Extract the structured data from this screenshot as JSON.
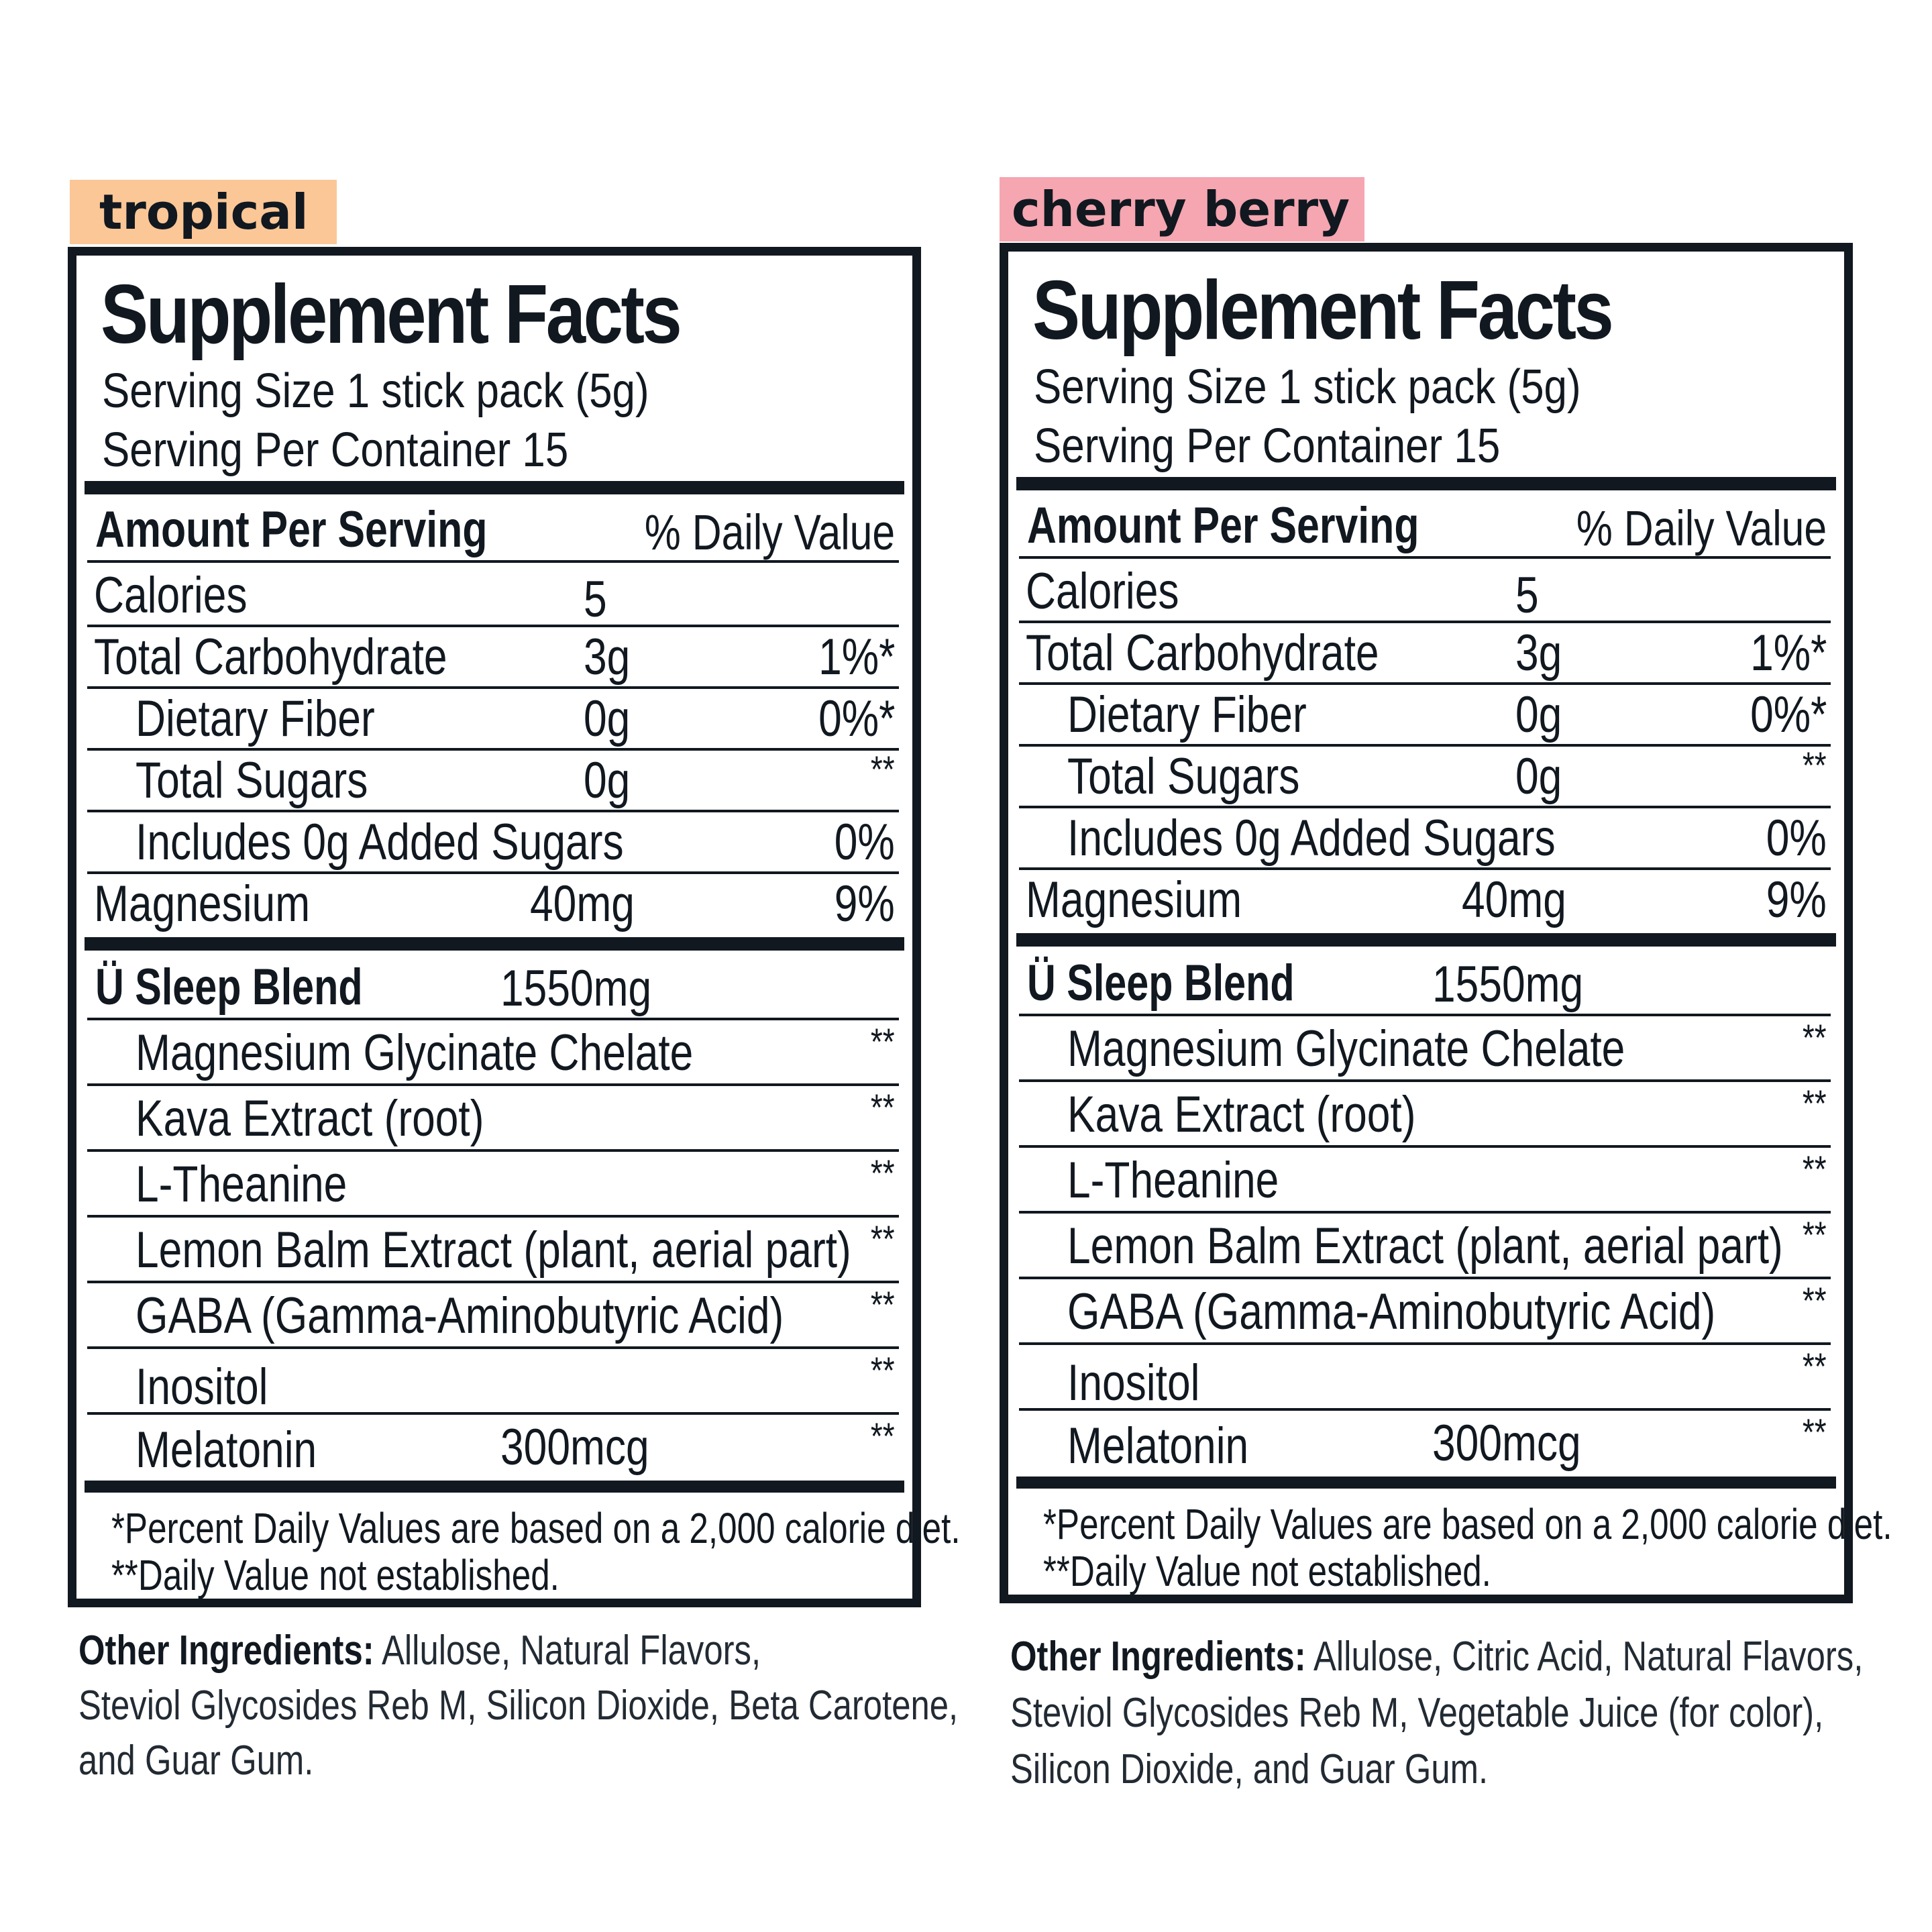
{
  "colors": {
    "tropical_tag": "#FBC797",
    "cherry_tag": "#F5A6B0",
    "ink": "#111820"
  },
  "panels": [
    {
      "flavor": "tropical",
      "title": "Supplement Facts",
      "serving_size": "Serving Size 1 stick pack (5g)",
      "servings_per_container": "Serving Per Container 15",
      "amount_per_serving": "Amount Per Serving",
      "daily_value_header": "% Daily Value",
      "nutrients": [
        {
          "name": "Calories",
          "amount": "5",
          "dv": ""
        },
        {
          "name": "Total Carbohydrate",
          "amount": "3g",
          "dv": "1%*"
        },
        {
          "name": "Dietary Fiber",
          "amount": "0g",
          "dv": "0%*"
        },
        {
          "name": "Total Sugars",
          "amount": "0g",
          "dv": "**"
        },
        {
          "name": "Includes 0g Added Sugars",
          "amount": "",
          "dv": "0%"
        },
        {
          "name": "Magnesium",
          "amount": "40mg",
          "dv": "9%"
        }
      ],
      "blend": {
        "name": "Ü Sleep Blend",
        "amount": "1550mg"
      },
      "blend_items": [
        {
          "name": "Magnesium Glycinate Chelate",
          "amount": "",
          "dv": "**"
        },
        {
          "name": "Kava Extract (root)",
          "amount": "",
          "dv": "**"
        },
        {
          "name": "L-Theanine",
          "amount": "",
          "dv": "**"
        },
        {
          "name": "Lemon Balm Extract (plant, aerial part)",
          "amount": "",
          "dv": "**"
        },
        {
          "name": "GABA (Gamma-Aminobutyric Acid)",
          "amount": "",
          "dv": "**"
        },
        {
          "name": "Inositol",
          "amount": "",
          "dv": "**"
        },
        {
          "name": "Melatonin",
          "amount": "300mcg",
          "dv": "**"
        }
      ],
      "footnote_1": "*Percent Daily Values are based on a 2,000 calorie diet.",
      "footnote_2": "**Daily Value not established.",
      "other_label": "Other Ingredients:",
      "other_lines": [
        " Allulose, Natural Flavors,",
        "Steviol Glycosides Reb M, Silicon Dioxide, Beta Carotene,",
        "and Guar Gum."
      ]
    },
    {
      "flavor": "cherry berry",
      "title": "Supplement Facts",
      "serving_size": "Serving Size 1 stick pack (5g)",
      "servings_per_container": "Serving Per Container 15",
      "amount_per_serving": "Amount Per Serving",
      "daily_value_header": "% Daily Value",
      "nutrients": [
        {
          "name": "Calories",
          "amount": "5",
          "dv": ""
        },
        {
          "name": "Total Carbohydrate",
          "amount": "3g",
          "dv": "1%*"
        },
        {
          "name": "Dietary Fiber",
          "amount": "0g",
          "dv": "0%*"
        },
        {
          "name": "Total Sugars",
          "amount": "0g",
          "dv": "**"
        },
        {
          "name": "Includes 0g Added Sugars",
          "amount": "",
          "dv": "0%"
        },
        {
          "name": "Magnesium",
          "amount": "40mg",
          "dv": "9%"
        }
      ],
      "blend": {
        "name": "Ü Sleep Blend",
        "amount": "1550mg"
      },
      "blend_items": [
        {
          "name": "Magnesium Glycinate Chelate",
          "amount": "",
          "dv": "**"
        },
        {
          "name": "Kava Extract (root)",
          "amount": "",
          "dv": "**"
        },
        {
          "name": "L-Theanine",
          "amount": "",
          "dv": "**"
        },
        {
          "name": "Lemon Balm Extract (plant, aerial part)",
          "amount": "",
          "dv": "**"
        },
        {
          "name": "GABA (Gamma-Aminobutyric Acid)",
          "amount": "",
          "dv": "**"
        },
        {
          "name": "Inositol",
          "amount": "",
          "dv": "**"
        },
        {
          "name": "Melatonin",
          "amount": "300mcg",
          "dv": "**"
        }
      ],
      "footnote_1": "*Percent Daily Values are based on a 2,000 calorie diet.",
      "footnote_2": "**Daily Value not established.",
      "other_label": "Other Ingredients:",
      "other_lines": [
        " Allulose, Citric Acid, Natural Flavors,",
        "Steviol Glycosides Reb M, Vegetable Juice (for color),",
        "Silicon Dioxide, and Guar Gum."
      ]
    }
  ]
}
